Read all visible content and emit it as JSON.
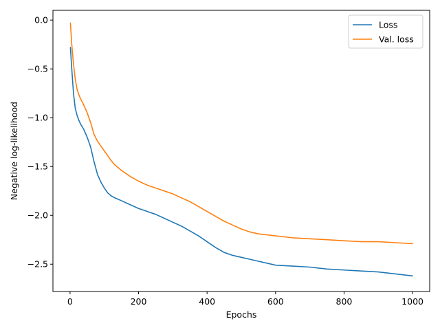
{
  "chart_data": {
    "type": "line",
    "title": "",
    "xlabel": "Epochs",
    "ylabel": "Negative log-likelihood",
    "xlim": [
      -50,
      1050
    ],
    "ylim": [
      -2.78,
      0.1
    ],
    "xticks": [
      0,
      200,
      400,
      600,
      800,
      1000
    ],
    "xtick_labels": [
      "0",
      "200",
      "400",
      "600",
      "800",
      "1000"
    ],
    "yticks": [
      0.0,
      -0.5,
      -1.0,
      -1.5,
      -2.0,
      -2.5
    ],
    "ytick_labels": [
      "0.0",
      "−0.5",
      "−1.0",
      "−1.5",
      "−2.0",
      "−2.5"
    ],
    "grid": false,
    "legend": "top-right",
    "series": [
      {
        "name": "Loss",
        "color": "#1f77b4",
        "x": [
          1,
          5,
          10,
          15,
          20,
          25,
          30,
          40,
          50,
          60,
          70,
          80,
          90,
          100,
          110,
          120,
          130,
          150,
          175,
          200,
          225,
          250,
          275,
          300,
          325,
          350,
          375,
          400,
          425,
          450,
          475,
          500,
          525,
          550,
          575,
          600,
          650,
          700,
          750,
          800,
          850,
          900,
          950,
          1000
        ],
        "y": [
          -0.28,
          -0.5,
          -0.75,
          -0.9,
          -0.97,
          -1.02,
          -1.06,
          -1.12,
          -1.2,
          -1.3,
          -1.45,
          -1.58,
          -1.66,
          -1.72,
          -1.77,
          -1.8,
          -1.82,
          -1.85,
          -1.89,
          -1.93,
          -1.96,
          -1.99,
          -2.03,
          -2.07,
          -2.11,
          -2.16,
          -2.21,
          -2.27,
          -2.33,
          -2.38,
          -2.41,
          -2.43,
          -2.45,
          -2.47,
          -2.49,
          -2.51,
          -2.52,
          -2.53,
          -2.55,
          -2.56,
          -2.57,
          -2.58,
          -2.6,
          -2.62
        ]
      },
      {
        "name": "Val. loss",
        "color": "#ff7f0e",
        "x": [
          1,
          5,
          10,
          15,
          20,
          25,
          30,
          40,
          50,
          60,
          70,
          80,
          90,
          100,
          110,
          120,
          130,
          150,
          175,
          200,
          225,
          250,
          275,
          300,
          325,
          350,
          375,
          400,
          425,
          450,
          475,
          500,
          525,
          550,
          575,
          600,
          650,
          700,
          750,
          800,
          850,
          900,
          950,
          1000
        ],
        "y": [
          -0.03,
          -0.25,
          -0.45,
          -0.6,
          -0.7,
          -0.76,
          -0.8,
          -0.87,
          -0.95,
          -1.05,
          -1.17,
          -1.24,
          -1.29,
          -1.34,
          -1.39,
          -1.44,
          -1.48,
          -1.54,
          -1.6,
          -1.65,
          -1.69,
          -1.72,
          -1.75,
          -1.78,
          -1.82,
          -1.86,
          -1.91,
          -1.96,
          -2.01,
          -2.06,
          -2.1,
          -2.14,
          -2.17,
          -2.19,
          -2.2,
          -2.21,
          -2.23,
          -2.24,
          -2.25,
          -2.26,
          -2.27,
          -2.27,
          -2.28,
          -2.29
        ]
      }
    ]
  }
}
